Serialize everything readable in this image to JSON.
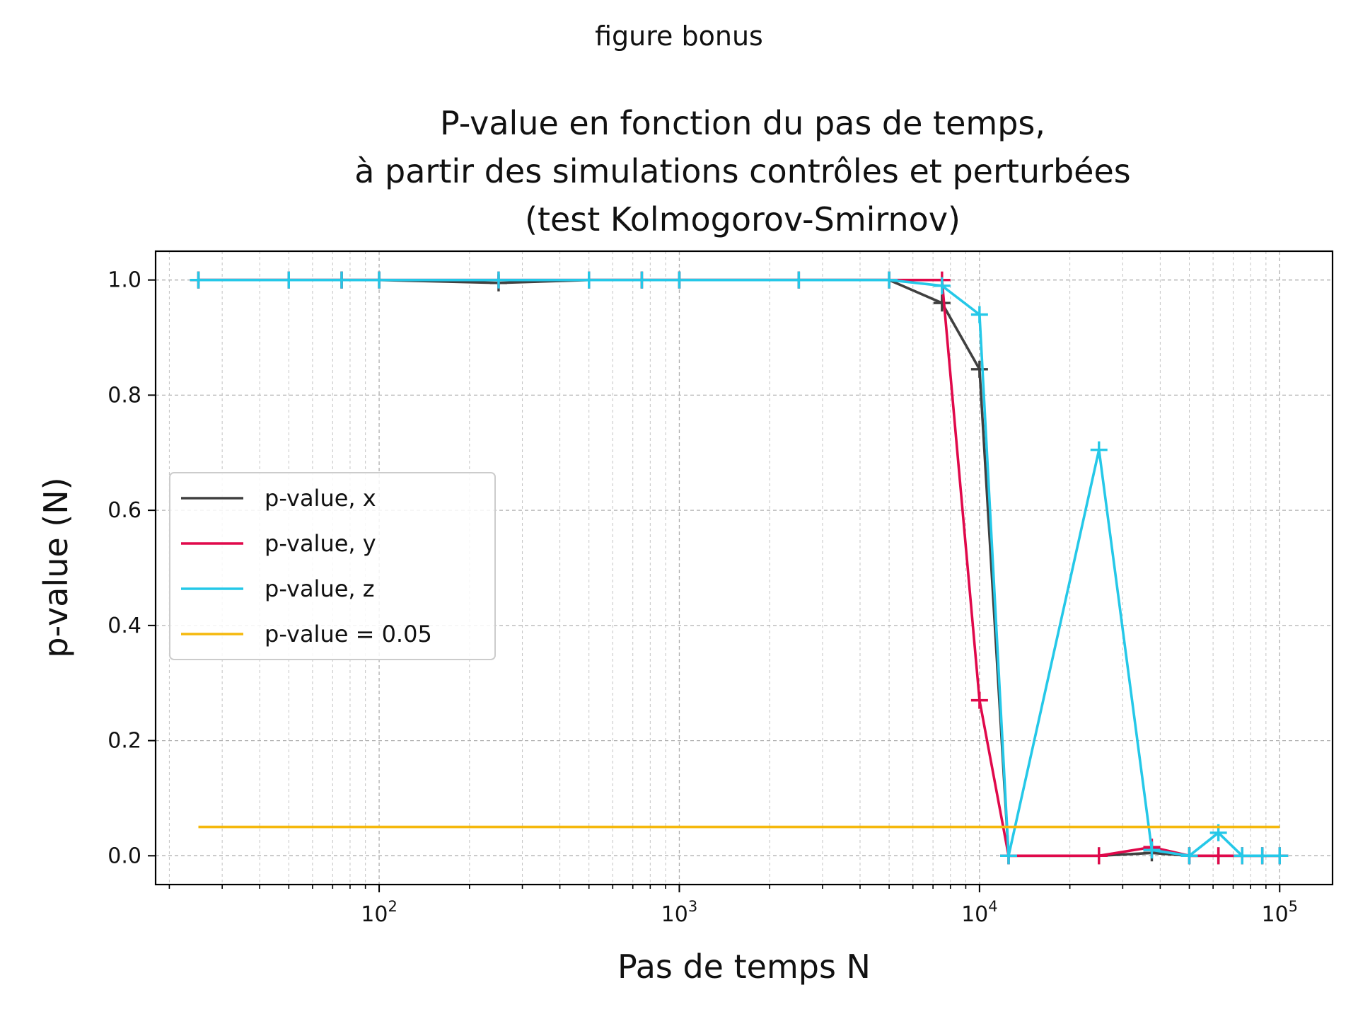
{
  "figure": {
    "suptitle": "figure bonus"
  },
  "chart_data": {
    "type": "line",
    "title_lines": [
      "P-value en fonction du pas de temps,",
      "à partir des simulations contrôles et perturbées",
      "(test Kolmogorov-Smirnov)"
    ],
    "xlabel": "Pas de temps N",
    "ylabel": "p-value (N)",
    "xscale": "log",
    "xlim": [
      18,
      150000
    ],
    "ylim": [
      -0.05,
      1.05
    ],
    "x_ticks": [
      {
        "value": 100,
        "base": "10",
        "exp": "2"
      },
      {
        "value": 1000,
        "base": "10",
        "exp": "3"
      },
      {
        "value": 10000,
        "base": "10",
        "exp": "4"
      },
      {
        "value": 100000,
        "base": "10",
        "exp": "5"
      }
    ],
    "y_ticks": [
      {
        "value": 0.0,
        "label": "0.0"
      },
      {
        "value": 0.2,
        "label": "0.2"
      },
      {
        "value": 0.4,
        "label": "0.4"
      },
      {
        "value": 0.6,
        "label": "0.6"
      },
      {
        "value": 0.8,
        "label": "0.8"
      },
      {
        "value": 1.0,
        "label": "1.0"
      }
    ],
    "grid": true,
    "legend_position": "center-left",
    "x": [
      25,
      50,
      75,
      100,
      250,
      500,
      750,
      1000,
      2500,
      5000,
      7500,
      10000,
      12500,
      25000,
      37500,
      50000,
      62500,
      75000,
      87500,
      100000
    ],
    "series": [
      {
        "name": "p-value, x",
        "color": "#404040",
        "marker": "+",
        "values": [
          1.0,
          1.0,
          1.0,
          1.0,
          0.995,
          1.0,
          1.0,
          1.0,
          1.0,
          1.0,
          0.96,
          0.845,
          0.0,
          0.0,
          0.005,
          0.0,
          0.0,
          0.0,
          0.0,
          0.0
        ]
      },
      {
        "name": "p-value, y",
        "color": "#e0094b",
        "marker": "+",
        "values": [
          1.0,
          1.0,
          1.0,
          1.0,
          1.0,
          1.0,
          1.0,
          1.0,
          1.0,
          1.0,
          1.0,
          0.27,
          0.0,
          0.0,
          0.015,
          0.0,
          0.0,
          0.0,
          0.0,
          0.0
        ]
      },
      {
        "name": "p-value, z",
        "color": "#25c8e8",
        "marker": "+",
        "values": [
          1.0,
          1.0,
          1.0,
          1.0,
          1.0,
          1.0,
          1.0,
          1.0,
          1.0,
          1.0,
          0.99,
          0.94,
          0.0,
          0.705,
          0.01,
          0.0,
          0.04,
          0.0,
          0.0,
          0.0
        ]
      },
      {
        "name": "p-value = 0.05",
        "color": "#f5b80c",
        "marker": "none",
        "x": [
          25,
          100000
        ],
        "values": [
          0.05,
          0.05
        ]
      }
    ]
  }
}
